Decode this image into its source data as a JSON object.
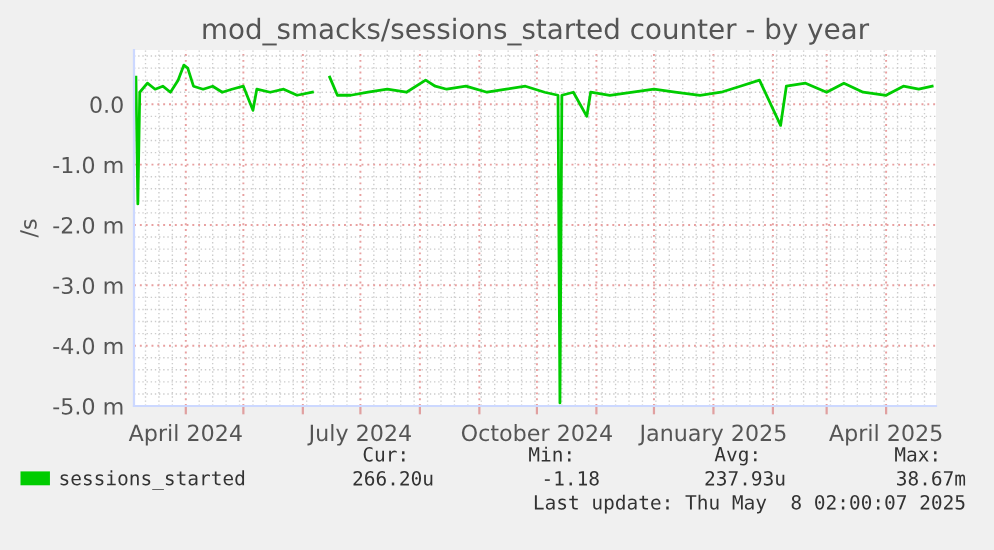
{
  "chart_data": {
    "type": "line",
    "title": "mod_smacks/sessions_started counter - by year",
    "ylabel": "/s",
    "x": [
      "2024-03-06",
      "2024-03-07",
      "2024-03-08",
      "2024-03-12",
      "2024-03-16",
      "2024-03-20",
      "2024-03-24",
      "2024-03-28",
      "2024-03-31",
      "2024-04-02",
      "2024-04-05",
      "2024-04-10",
      "2024-04-15",
      "2024-04-20",
      "2024-04-25",
      "2024-05-01",
      "2024-05-06",
      "2024-05-08",
      "2024-05-15",
      "2024-05-22",
      "2024-05-29",
      "2024-06-06",
      "2024-06-10",
      "2024-06-15",
      "2024-06-19",
      "2024-06-26",
      "2024-07-05",
      "2024-07-15",
      "2024-07-25",
      "2024-08-04",
      "2024-08-09",
      "2024-08-15",
      "2024-08-25",
      "2024-09-05",
      "2024-09-15",
      "2024-09-25",
      "2024-10-05",
      "2024-10-12",
      "2024-10-13",
      "2024-10-14",
      "2024-10-20",
      "2024-10-27",
      "2024-10-29",
      "2024-11-08",
      "2024-11-20",
      "2024-12-01",
      "2024-12-12",
      "2024-12-25",
      "2025-01-05",
      "2025-01-15",
      "2025-01-25",
      "2025-02-05",
      "2025-02-08",
      "2025-02-18",
      "2025-03-01",
      "2025-03-10",
      "2025-03-20",
      "2025-04-01",
      "2025-04-10",
      "2025-04-18",
      "2025-04-25"
    ],
    "series": [
      {
        "name": "sessions_started",
        "color": "#00cc00",
        "values": [
          0.45,
          -1.65,
          0.2,
          0.35,
          0.25,
          0.3,
          0.2,
          0.4,
          0.65,
          0.6,
          0.3,
          0.25,
          0.3,
          0.2,
          0.25,
          0.3,
          -0.1,
          0.25,
          0.2,
          0.25,
          0.15,
          0.2,
          null,
          0.45,
          0.15,
          0.15,
          0.2,
          0.25,
          0.2,
          0.4,
          0.3,
          0.25,
          0.3,
          0.2,
          0.25,
          0.3,
          0.2,
          0.15,
          -4.95,
          0.15,
          0.2,
          -0.2,
          0.2,
          0.15,
          0.2,
          0.25,
          0.2,
          0.15,
          0.2,
          0.3,
          0.4,
          -0.35,
          0.3,
          0.35,
          0.2,
          0.35,
          0.2,
          0.15,
          0.3,
          0.25,
          0.3
        ]
      }
    ],
    "ylim": [
      -5.0,
      0.9
    ],
    "yticks": [
      {
        "value": -5.0,
        "label": "-5.0 m"
      },
      {
        "value": -4.0,
        "label": "-4.0 m"
      },
      {
        "value": -3.0,
        "label": "-3.0 m"
      },
      {
        "value": -2.0,
        "label": "-2.0 m"
      },
      {
        "value": -1.0,
        "label": "-1.0 m"
      },
      {
        "value": 0,
        "label": "0.0"
      }
    ],
    "xlim": [
      "2024-03-05",
      "2025-04-27"
    ],
    "xticks": [
      {
        "value": "2024-04-01",
        "label": "April 2024"
      },
      {
        "value": "2024-05-01",
        "label": null
      },
      {
        "value": "2024-06-01",
        "label": null
      },
      {
        "value": "2024-07-01",
        "label": "July 2024"
      },
      {
        "value": "2024-08-01",
        "label": null
      },
      {
        "value": "2024-09-01",
        "label": null
      },
      {
        "value": "2024-10-01",
        "label": "October 2024"
      },
      {
        "value": "2024-11-01",
        "label": null
      },
      {
        "value": "2024-12-01",
        "label": null
      },
      {
        "value": "2025-01-01",
        "label": "January 2025"
      },
      {
        "value": "2025-02-01",
        "label": null
      },
      {
        "value": "2025-03-01",
        "label": null
      },
      {
        "value": "2025-04-01",
        "label": "April 2025"
      }
    ],
    "grid": true,
    "legend": "bottom",
    "marker": "none",
    "line_style": "solid",
    "annotations": [
      "Cur:",
      "Min:",
      "Avg:",
      "Max:",
      "266.20u",
      "-1.18",
      "237.93u",
      "38.67m",
      "Last update: Thu May  8 02:00:07 2025"
    ]
  }
}
